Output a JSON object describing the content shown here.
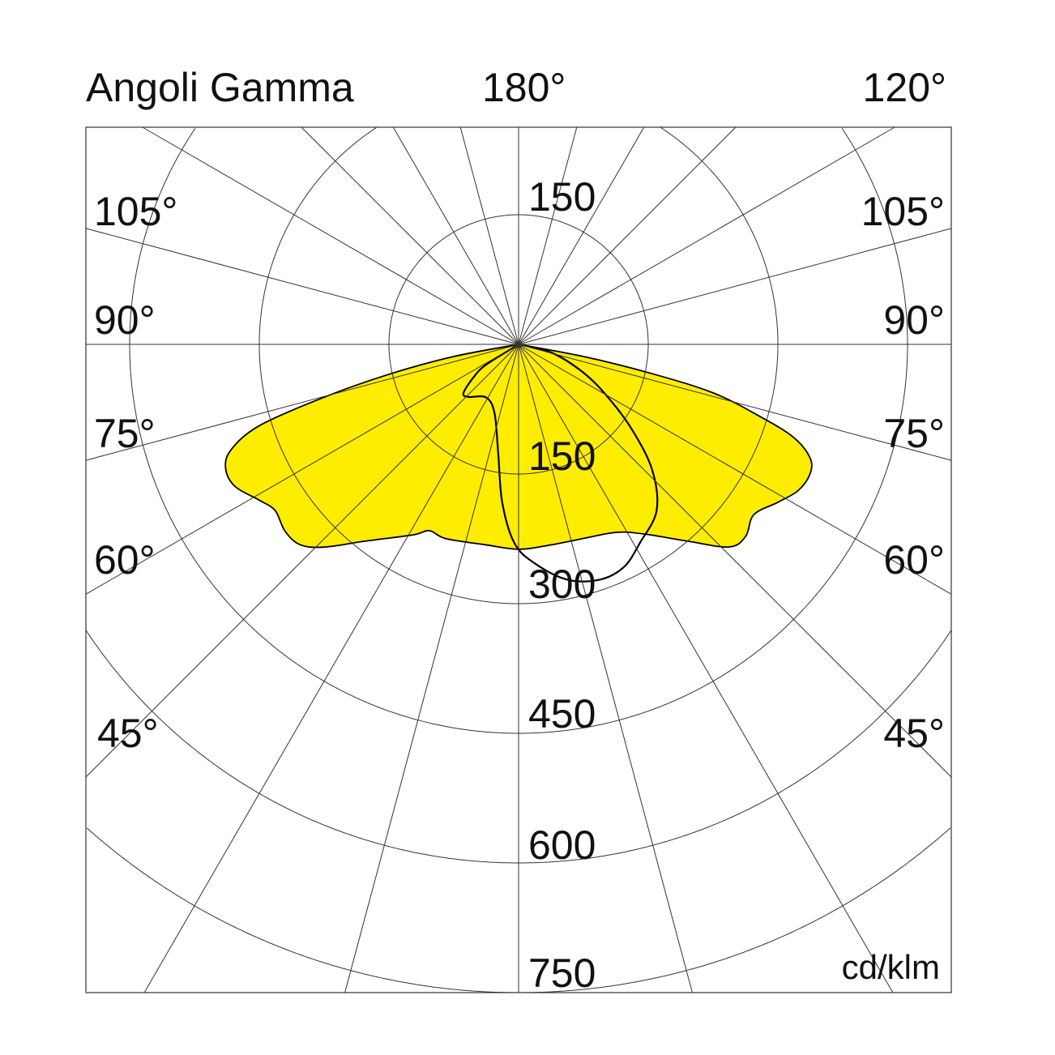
{
  "chart_data": {
    "type": "polar",
    "title": "Angoli Gamma",
    "unit": "cd/klm",
    "rlim": [
      0,
      750
    ],
    "radial_ticks": [
      150,
      300,
      450,
      600,
      750
    ],
    "radial_tick_labels": {
      "upper": "150",
      "r150": "150",
      "r300": "300",
      "r450": "450",
      "r600": "600",
      "r750": "750"
    },
    "angle_step_deg": 15,
    "angle_labels": {
      "top_center": "180°",
      "top_right": "120°",
      "left_105": "105°",
      "right_105": "105°",
      "left_90": "90°",
      "right_90": "90°",
      "left_75": "75°",
      "right_75": "75°",
      "left_60": "60°",
      "right_60": "60°",
      "left_45": "45°",
      "right_45": "45°"
    },
    "grid": true,
    "series": [
      {
        "style": "filled",
        "color": "#FFED00",
        "points": [
          [
            -80,
            0
          ],
          [
            -79.4,
            76
          ],
          [
            -77,
            154
          ],
          [
            -74.8,
            233
          ],
          [
            -72.6,
            314
          ],
          [
            -69.9,
            354
          ],
          [
            -67.1,
            368
          ],
          [
            -63.4,
            367
          ],
          [
            -59,
            350
          ],
          [
            -55.7,
            341
          ],
          [
            -51.4,
            346
          ],
          [
            -47.5,
            343
          ],
          [
            -43.8,
            325
          ],
          [
            -38,
            289
          ],
          [
            -29,
            252
          ],
          [
            -25.6,
            239
          ],
          [
            -20.6,
            240
          ],
          [
            -9.2,
            235
          ],
          [
            0,
            237
          ],
          [
            9.2,
            235
          ],
          [
            20.8,
            238
          ],
          [
            25.3,
            242
          ],
          [
            29.3,
            249
          ],
          [
            34.2,
            266
          ],
          [
            40.8,
            301
          ],
          [
            46.1,
            338
          ],
          [
            49.8,
            344
          ],
          [
            54.1,
            336
          ],
          [
            58.6,
            351
          ],
          [
            62.4,
            365
          ],
          [
            66,
            369
          ],
          [
            68.7,
            362
          ],
          [
            71.3,
            336
          ],
          [
            73.3,
            293
          ],
          [
            76,
            232
          ],
          [
            77.7,
            154
          ],
          [
            79.4,
            76
          ],
          [
            80,
            0
          ]
        ]
      },
      {
        "style": "outline",
        "color": "#000000",
        "points": [
          [
            -60,
            0
          ],
          [
            -58,
            44
          ],
          [
            -54,
            64
          ],
          [
            -48.6,
            85
          ],
          [
            -43.6,
            84
          ],
          [
            -31.6,
            72
          ],
          [
            -19.4,
            84
          ],
          [
            -10.5,
            129
          ],
          [
            -5.9,
            184
          ],
          [
            -1.2,
            230
          ],
          [
            4.2,
            254
          ],
          [
            11.7,
            278
          ],
          [
            19,
            288
          ],
          [
            25.3,
            285
          ],
          [
            31.5,
            269
          ],
          [
            39.7,
            250
          ],
          [
            46.8,
            212
          ],
          [
            53.1,
            164
          ],
          [
            59.4,
            120
          ],
          [
            66.4,
            82
          ],
          [
            76,
            39
          ],
          [
            80,
            0
          ]
        ]
      }
    ]
  }
}
